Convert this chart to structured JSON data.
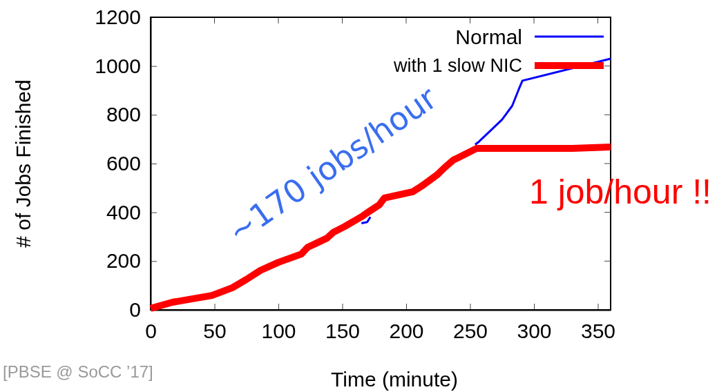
{
  "chart_data": {
    "type": "line",
    "xlabel": "Time (minute)",
    "ylabel": "# of Jobs Finished",
    "xlim": [
      0,
      360
    ],
    "ylim": [
      0,
      1200
    ],
    "xticks": [
      0,
      50,
      100,
      150,
      200,
      250,
      300,
      350
    ],
    "yticks": [
      0,
      200,
      400,
      600,
      800,
      1000,
      1200
    ],
    "legend": "top right",
    "marker": "none",
    "line_style": "solid",
    "grid": false,
    "series": [
      {
        "name": "Normal",
        "color": "#0000ff",
        "x": [
          165,
          169.5,
          172,
          200,
          254,
          257,
          275,
          283,
          288,
          291,
          360
        ],
        "values": [
          355,
          360,
          381,
          null,
          678,
          690,
          780,
          837,
          903,
          940,
          1030
        ]
      },
      {
        "name": "with 1 slow NIC",
        "color": "#ff0000",
        "x": [
          0,
          17,
          48,
          64,
          75,
          86,
          100,
          118,
          123,
          138,
          143,
          152,
          166,
          172,
          179,
          183,
          205,
          212,
          224.5,
          230,
          237,
          241,
          255,
          330,
          360
        ],
        "values": [
          6,
          31,
          59,
          91,
          125,
          162,
          195,
          229,
          257,
          294,
          318,
          342,
          385,
          407,
          431,
          459,
          484,
          507,
          555,
          583,
          615,
          625,
          662,
          662,
          668
        ]
      }
    ],
    "annotations": [
      "~170 jobs/hour",
      "1 job/hour !!",
      "[PBSE @ SoCC ’17]"
    ]
  }
}
